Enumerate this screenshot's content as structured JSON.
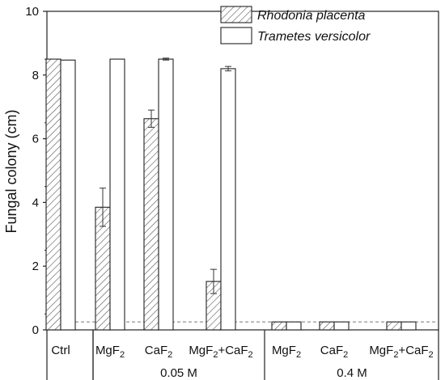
{
  "chart_data": {
    "type": "bar",
    "ylabel": "Fungal colony (cm)",
    "ylim": [
      0,
      10
    ],
    "yticks": [
      "0",
      "2",
      "4",
      "6",
      "8",
      "10"
    ],
    "categories": [
      {
        "main": "Ctrl",
        "sub": ""
      },
      {
        "main": "MgF",
        "sub": "2"
      },
      {
        "main": "CaF",
        "sub": "2"
      },
      {
        "main": "MgF",
        "sub": "2",
        "main2": "+CaF",
        "sub2": "2"
      },
      {
        "main": "MgF",
        "sub": "2"
      },
      {
        "main": "CaF",
        "sub": "2"
      },
      {
        "main": "MgF",
        "sub": "2",
        "main2": "+CaF",
        "sub2": "2"
      }
    ],
    "groups": [
      {
        "label": "0.05 M",
        "from": 1,
        "to": 3
      },
      {
        "label": "0.4 M",
        "from": 4,
        "to": 6
      }
    ],
    "series": [
      {
        "name": "Rhodonia placenta",
        "pattern": "hatched",
        "values": [
          8.5,
          3.85,
          6.63,
          1.52,
          0.25,
          0.25,
          0.25
        ],
        "errors": [
          0,
          0.6,
          0.27,
          0.38,
          0,
          0,
          0
        ]
      },
      {
        "name": "Trametes versicolor",
        "pattern": "open",
        "values": [
          8.47,
          8.5,
          8.5,
          8.2,
          0.25,
          0.25,
          0.25
        ],
        "errors": [
          0,
          0,
          0.03,
          0.07,
          0,
          0,
          0
        ]
      }
    ],
    "reference_line": 0.25,
    "legend_position": "top-right",
    "grid": false
  }
}
